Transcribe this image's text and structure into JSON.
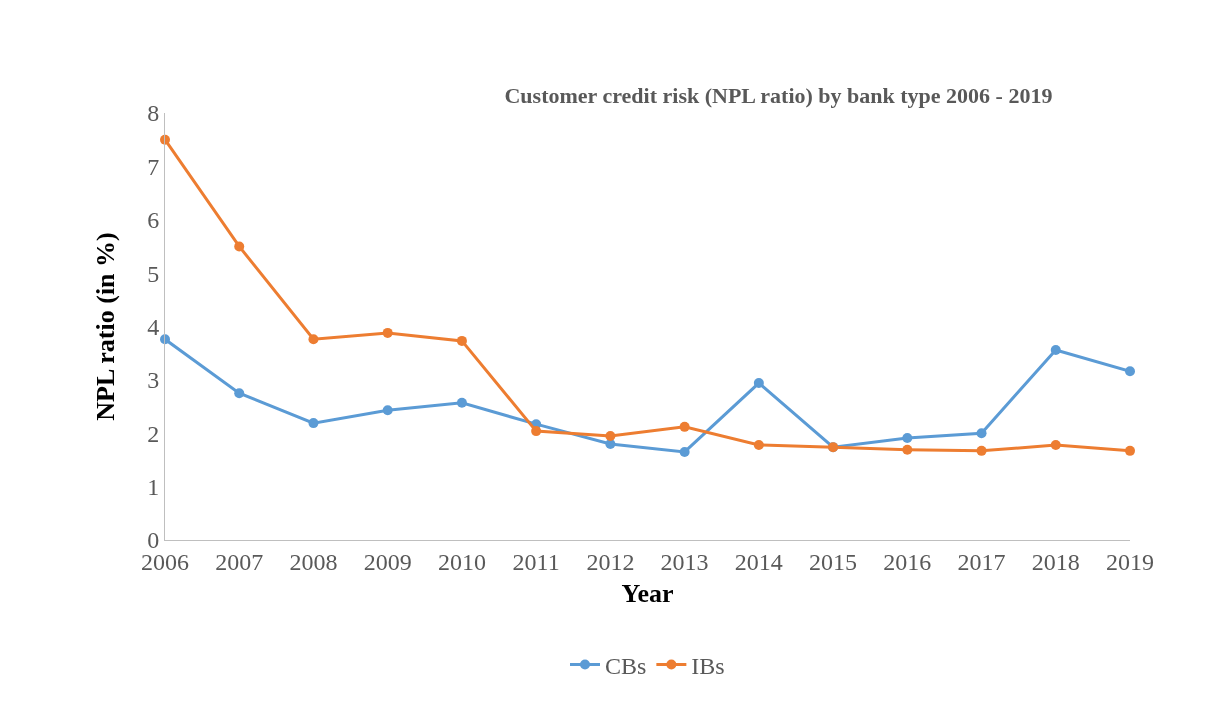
{
  "chart_data": {
    "type": "line",
    "title": "Customer credit risk (NPL ratio) by bank type 2006 - 2019",
    "xlabel": "Year",
    "ylabel": "NPL ratio (in %)",
    "categories": [
      "2006",
      "2007",
      "2008",
      "2009",
      "2010",
      "2011",
      "2012",
      "2013",
      "2014",
      "2015",
      "2016",
      "2017",
      "2018",
      "2019"
    ],
    "series": [
      {
        "name": "CBs",
        "color": "#5b9bd5",
        "values": [
          3.76,
          2.75,
          2.19,
          2.43,
          2.57,
          2.17,
          1.8,
          1.65,
          2.94,
          1.74,
          1.91,
          2.0,
          3.56,
          3.16
        ]
      },
      {
        "name": "IBs",
        "color": "#ed7d31",
        "values": [
          7.5,
          5.5,
          3.76,
          3.88,
          3.73,
          2.04,
          1.95,
          2.12,
          1.78,
          1.74,
          1.69,
          1.67,
          1.78,
          1.67
        ]
      }
    ],
    "ylim": [
      0,
      8
    ],
    "yticks": [
      0,
      1,
      2,
      3,
      4,
      5,
      6,
      7,
      8
    ],
    "legend": "bottom",
    "marker": "circle",
    "line_style": "solid"
  }
}
